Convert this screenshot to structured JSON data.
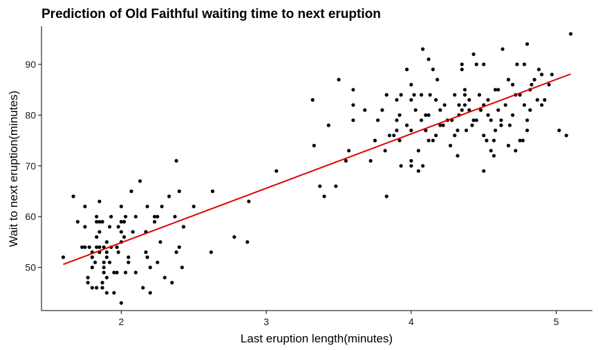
{
  "chart_data": {
    "type": "scatter",
    "title": "Prediction of Old Faithful waiting time to next eruption",
    "xlabel": "Last eruption length(minutes)",
    "ylabel": "Wait to next eruption(minutes)",
    "xlim": [
      1.45,
      5.25
    ],
    "ylim": [
      41.5,
      97.5
    ],
    "xticks": [
      2,
      3,
      4,
      5
    ],
    "yticks": [
      50,
      60,
      70,
      80,
      90
    ],
    "grid": false,
    "legend": "none",
    "point_color": "#000000",
    "fit_color": "#dd0000",
    "fit_line": {
      "x": [
        1.6,
        5.1
      ],
      "y": [
        50.6,
        88.1
      ]
    },
    "points": [
      [
        1.6,
        52
      ],
      [
        1.67,
        64
      ],
      [
        1.7,
        59
      ],
      [
        1.73,
        54
      ],
      [
        1.75,
        54
      ],
      [
        1.75,
        62
      ],
      [
        1.75,
        58
      ],
      [
        1.77,
        48
      ],
      [
        1.77,
        47
      ],
      [
        1.78,
        54
      ],
      [
        1.8,
        52
      ],
      [
        1.8,
        53
      ],
      [
        1.8,
        46
      ],
      [
        1.8,
        50
      ],
      [
        1.82,
        51
      ],
      [
        1.83,
        54
      ],
      [
        1.83,
        56
      ],
      [
        1.83,
        59
      ],
      [
        1.83,
        46
      ],
      [
        1.83,
        60
      ],
      [
        1.85,
        59
      ],
      [
        1.85,
        63
      ],
      [
        1.85,
        57
      ],
      [
        1.85,
        54
      ],
      [
        1.85,
        53
      ],
      [
        1.87,
        46
      ],
      [
        1.87,
        59
      ],
      [
        1.87,
        47
      ],
      [
        1.88,
        54
      ],
      [
        1.88,
        51
      ],
      [
        1.88,
        50
      ],
      [
        1.88,
        49
      ],
      [
        1.9,
        45
      ],
      [
        1.9,
        53
      ],
      [
        1.9,
        55
      ],
      [
        1.9,
        48
      ],
      [
        1.9,
        52
      ],
      [
        1.92,
        51
      ],
      [
        1.92,
        58
      ],
      [
        1.93,
        54
      ],
      [
        1.93,
        60
      ],
      [
        1.95,
        45
      ],
      [
        1.95,
        49
      ],
      [
        1.97,
        49
      ],
      [
        1.97,
        54
      ],
      [
        1.98,
        58
      ],
      [
        1.98,
        53
      ],
      [
        2.0,
        59
      ],
      [
        2.0,
        43
      ],
      [
        2.0,
        62
      ],
      [
        2.0,
        57
      ],
      [
        2.0,
        55
      ],
      [
        2.02,
        56
      ],
      [
        2.02,
        59
      ],
      [
        2.03,
        49
      ],
      [
        2.03,
        60
      ],
      [
        2.05,
        51
      ],
      [
        2.05,
        52
      ],
      [
        2.07,
        65
      ],
      [
        2.08,
        57
      ],
      [
        2.1,
        60
      ],
      [
        2.1,
        49
      ],
      [
        2.13,
        67
      ],
      [
        2.15,
        46
      ],
      [
        2.17,
        53
      ],
      [
        2.17,
        57
      ],
      [
        2.18,
        52
      ],
      [
        2.18,
        62
      ],
      [
        2.2,
        45
      ],
      [
        2.2,
        50
      ],
      [
        2.23,
        59
      ],
      [
        2.23,
        60
      ],
      [
        2.25,
        60
      ],
      [
        2.25,
        51
      ],
      [
        2.27,
        55
      ],
      [
        2.28,
        62
      ],
      [
        2.3,
        48
      ],
      [
        2.33,
        64
      ],
      [
        2.35,
        47
      ],
      [
        2.37,
        60
      ],
      [
        2.38,
        53
      ],
      [
        2.38,
        71
      ],
      [
        2.4,
        65
      ],
      [
        2.4,
        54
      ],
      [
        2.42,
        50
      ],
      [
        2.43,
        58
      ],
      [
        2.5,
        62
      ],
      [
        2.62,
        53
      ],
      [
        2.63,
        65
      ],
      [
        2.78,
        56
      ],
      [
        2.87,
        55
      ],
      [
        2.88,
        63
      ],
      [
        3.07,
        69
      ],
      [
        3.32,
        83
      ],
      [
        3.33,
        74
      ],
      [
        3.37,
        66
      ],
      [
        3.4,
        64
      ],
      [
        3.43,
        78
      ],
      [
        3.48,
        66
      ],
      [
        3.5,
        87
      ],
      [
        3.55,
        71
      ],
      [
        3.57,
        73
      ],
      [
        3.6,
        82
      ],
      [
        3.6,
        85
      ],
      [
        3.6,
        79
      ],
      [
        3.68,
        81
      ],
      [
        3.72,
        71
      ],
      [
        3.75,
        75
      ],
      [
        3.77,
        79
      ],
      [
        3.8,
        81
      ],
      [
        3.82,
        73
      ],
      [
        3.83,
        64
      ],
      [
        3.83,
        84
      ],
      [
        3.85,
        76
      ],
      [
        3.88,
        76
      ],
      [
        3.9,
        77
      ],
      [
        3.9,
        83
      ],
      [
        3.9,
        79
      ],
      [
        3.92,
        75
      ],
      [
        3.92,
        80
      ],
      [
        3.93,
        84
      ],
      [
        3.93,
        70
      ],
      [
        3.97,
        78
      ],
      [
        3.97,
        89
      ],
      [
        4.0,
        71
      ],
      [
        4.0,
        70
      ],
      [
        4.0,
        77
      ],
      [
        4.0,
        83
      ],
      [
        4.0,
        86
      ],
      [
        4.02,
        84
      ],
      [
        4.03,
        81
      ],
      [
        4.05,
        69
      ],
      [
        4.05,
        73
      ],
      [
        4.07,
        79
      ],
      [
        4.07,
        84
      ],
      [
        4.08,
        70
      ],
      [
        4.08,
        93
      ],
      [
        4.1,
        77
      ],
      [
        4.1,
        80
      ],
      [
        4.12,
        75
      ],
      [
        4.12,
        91
      ],
      [
        4.12,
        80
      ],
      [
        4.13,
        84
      ],
      [
        4.15,
        89
      ],
      [
        4.15,
        75
      ],
      [
        4.17,
        83
      ],
      [
        4.17,
        76
      ],
      [
        4.18,
        87
      ],
      [
        4.2,
        78
      ],
      [
        4.2,
        81
      ],
      [
        4.22,
        78
      ],
      [
        4.23,
        82
      ],
      [
        4.25,
        79
      ],
      [
        4.27,
        74
      ],
      [
        4.28,
        79
      ],
      [
        4.3,
        76
      ],
      [
        4.3,
        84
      ],
      [
        4.32,
        72
      ],
      [
        4.32,
        77
      ],
      [
        4.33,
        80
      ],
      [
        4.33,
        82
      ],
      [
        4.35,
        90
      ],
      [
        4.35,
        81
      ],
      [
        4.35,
        89
      ],
      [
        4.37,
        84
      ],
      [
        4.37,
        85
      ],
      [
        4.37,
        82
      ],
      [
        4.38,
        77
      ],
      [
        4.4,
        83
      ],
      [
        4.4,
        81
      ],
      [
        4.42,
        78
      ],
      [
        4.43,
        79
      ],
      [
        4.43,
        92
      ],
      [
        4.45,
        90
      ],
      [
        4.45,
        79
      ],
      [
        4.47,
        84
      ],
      [
        4.48,
        81
      ],
      [
        4.5,
        76
      ],
      [
        4.5,
        69
      ],
      [
        4.5,
        82
      ],
      [
        4.5,
        90
      ],
      [
        4.52,
        75
      ],
      [
        4.53,
        83
      ],
      [
        4.53,
        80
      ],
      [
        4.55,
        79
      ],
      [
        4.55,
        73
      ],
      [
        4.57,
        72
      ],
      [
        4.57,
        75
      ],
      [
        4.58,
        77
      ],
      [
        4.58,
        85
      ],
      [
        4.6,
        81
      ],
      [
        4.6,
        85
      ],
      [
        4.62,
        78
      ],
      [
        4.62,
        79
      ],
      [
        4.63,
        93
      ],
      [
        4.65,
        82
      ],
      [
        4.67,
        87
      ],
      [
        4.67,
        74
      ],
      [
        4.68,
        78
      ],
      [
        4.7,
        86
      ],
      [
        4.7,
        80
      ],
      [
        4.72,
        73
      ],
      [
        4.72,
        84
      ],
      [
        4.73,
        90
      ],
      [
        4.75,
        75
      ],
      [
        4.75,
        84
      ],
      [
        4.77,
        75
      ],
      [
        4.78,
        90
      ],
      [
        4.78,
        82
      ],
      [
        4.8,
        94
      ],
      [
        4.8,
        79
      ],
      [
        4.8,
        77
      ],
      [
        4.82,
        81
      ],
      [
        4.82,
        85
      ],
      [
        4.83,
        86
      ],
      [
        4.85,
        87
      ],
      [
        4.87,
        83
      ],
      [
        4.88,
        89
      ],
      [
        4.9,
        88
      ],
      [
        4.9,
        82
      ],
      [
        4.92,
        83
      ],
      [
        4.95,
        86
      ],
      [
        4.97,
        88
      ],
      [
        5.02,
        77
      ],
      [
        5.07,
        76
      ],
      [
        5.1,
        96
      ]
    ]
  }
}
